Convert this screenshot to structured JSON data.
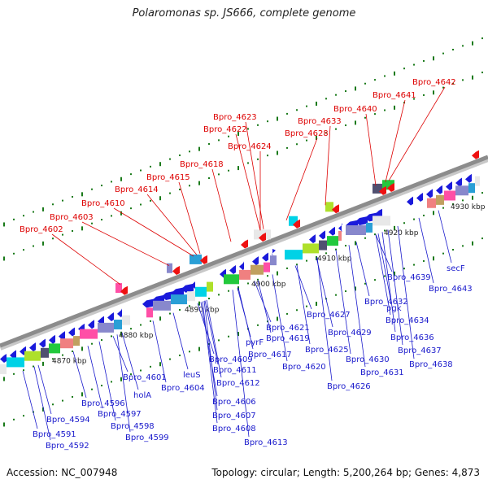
{
  "header": {
    "title": "Polaromonas sp. JS666, complete genome"
  },
  "footer": {
    "accession": "Accession: NC_007948",
    "stats": "Topology: circular; Length: 5,200,264 bp; Genes: 4,873"
  },
  "colors": {
    "backbone": "#8c8c8c",
    "forward_gene": "#1a1adb",
    "label_top": "#dd0000",
    "label_bottom": "#1a1acc",
    "tick": "#1a7a1a"
  },
  "ticks": [
    "4870 kbp",
    "4880 kbp",
    "4890 kbp",
    "4900 kbp",
    "4910 kbp",
    "4920 kbp",
    "4930 kbp"
  ],
  "top_labels": [
    "Bpro_4602",
    "Bpro_4603",
    "Bpro_4610",
    "Bpro_4614",
    "Bpro_4615",
    "Bpro_4618",
    "Bpro_4624",
    "Bpro_4622",
    "Bpro_4623",
    "Bpro_4628",
    "Bpro_4633",
    "Bpro_4640",
    "Bpro_4641",
    "Bpro_4642"
  ],
  "bottom_labels": [
    "Bpro_4594",
    "Bpro_4591",
    "Bpro_4592",
    "Bpro_4596",
    "Bpro_4597",
    "Bpro_4598",
    "Bpro_4599",
    "Bpro_4601",
    "holA",
    "Bpro_4604",
    "leuS",
    "Bpro_4609",
    "Bpro_4611",
    "Bpro_4612",
    "Bpro_4606",
    "Bpro_4607",
    "Bpro_4608",
    "Bpro_4613",
    "pyrF",
    "Bpro_4617",
    "Bpro_4621",
    "Bpro_4619",
    "Bpro_4620",
    "Bpro_4627",
    "Bpro_4625",
    "Bpro_4626",
    "Bpro_4629",
    "Bpro_4632",
    "Bpro_4630",
    "Bpro_4631",
    "pgk",
    "Bpro_4634",
    "Bpro_4639",
    "Bpro_4636",
    "Bpro_4637",
    "Bpro_4638",
    "secF",
    "Bpro_4643"
  ]
}
